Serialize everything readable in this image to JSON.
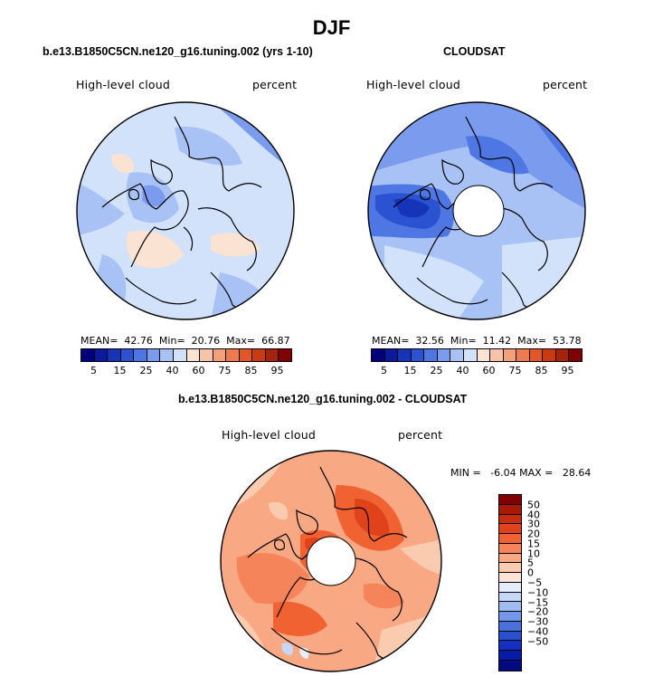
{
  "title": "DJF",
  "panels": [
    {
      "subtitle": "b.e13.B1850C5CN.ne120_g16.tuning.002 (yrs 1-10)",
      "left_label": "High-level cloud",
      "right_label": "percent",
      "stats": {
        "mean_label": "MEAN=",
        "mean": "42.76",
        "min_label": "Min=",
        "min": "20.76",
        "max_label": "Max=",
        "max": "66.87"
      }
    },
    {
      "subtitle": "CLOUDSAT",
      "left_label": "High-level cloud",
      "right_label": "percent",
      "stats": {
        "mean_label": "MEAN=",
        "mean": "32.56",
        "min_label": "Min=",
        "min": "11.42",
        "max_label": "Max=",
        "max": "53.78"
      }
    }
  ],
  "colorbar_abs": {
    "colors": [
      "#00007f",
      "#0a1a9c",
      "#1534b8",
      "#2a52d1",
      "#4f77e3",
      "#7b9cee",
      "#a9c2f5",
      "#d2e2fb",
      "#fbe3d3",
      "#f8c4a8",
      "#f4a07a",
      "#ee7a52",
      "#e45528",
      "#c93a12",
      "#a62208",
      "#800000"
    ],
    "tick_labels": [
      "5",
      "15",
      "25",
      "40",
      "60",
      "75",
      "85",
      "95"
    ]
  },
  "difference": {
    "subtitle": "b.e13.B1850C5CN.ne120_g16.tuning.002 - CLOUDSAT",
    "left_label": "High-level cloud",
    "right_label": "percent",
    "minmax": "MIN =   -6.04 MAX =   28.64",
    "colorbar": {
      "colors": [
        "#800000",
        "#a81a08",
        "#c92d0f",
        "#e0431c",
        "#f06232",
        "#f5845a",
        "#f8a882",
        "#fbcbb0",
        "#fde6d7",
        "#e6eefc",
        "#c6d8f7",
        "#9fbcf0",
        "#7298e7",
        "#4b70dc",
        "#2a4ed0",
        "#1430be",
        "#061ca6",
        "#000a80"
      ],
      "tick_labels": [
        "50",
        "40",
        "30",
        "20",
        "15",
        "10",
        "5",
        "0",
        "−5",
        "−10",
        "−15",
        "−20",
        "−30",
        "−40",
        "−50"
      ]
    }
  }
}
